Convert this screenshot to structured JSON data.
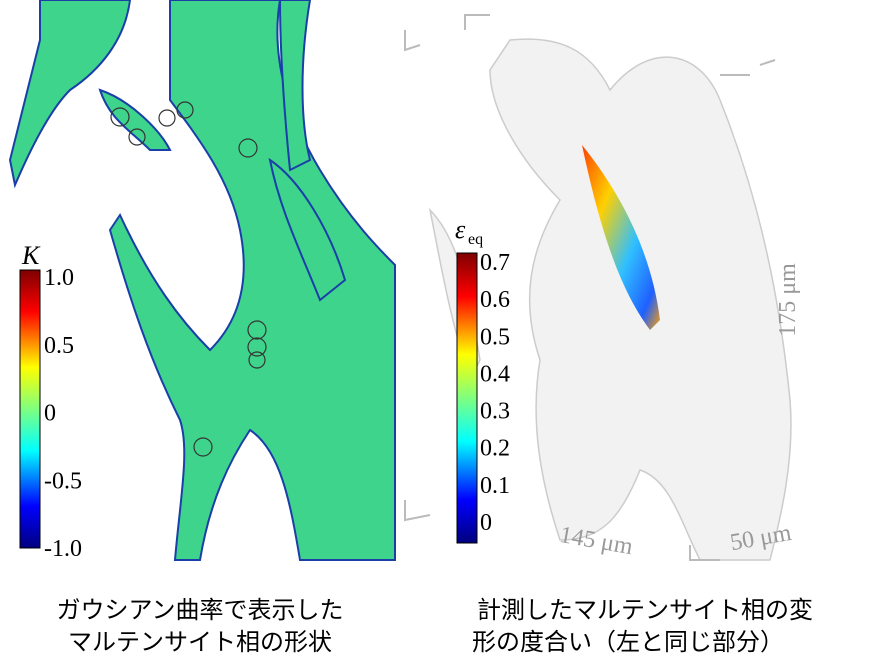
{
  "left_panel": {
    "colorbar_title": "K",
    "colorbar_ticks": [
      "1.0",
      "0.5",
      "0",
      "-0.5",
      "-1.0"
    ],
    "caption": [
      "ガウシアン曲率で表示した",
      "マルテンサイト相の形状"
    ]
  },
  "right_panel": {
    "colorbar_title": "ε",
    "colorbar_title_sub": "eq",
    "colorbar_ticks": [
      "0.7",
      "0.6",
      "0.5",
      "0.4",
      "0.3",
      "0.2",
      "0.1",
      "0"
    ],
    "scale_labels": [
      "175 μm",
      "145 μm",
      "50 μm"
    ],
    "caption": [
      "計測したマルテンサイト相の変",
      "形の度合い（左と同じ部分）"
    ]
  }
}
